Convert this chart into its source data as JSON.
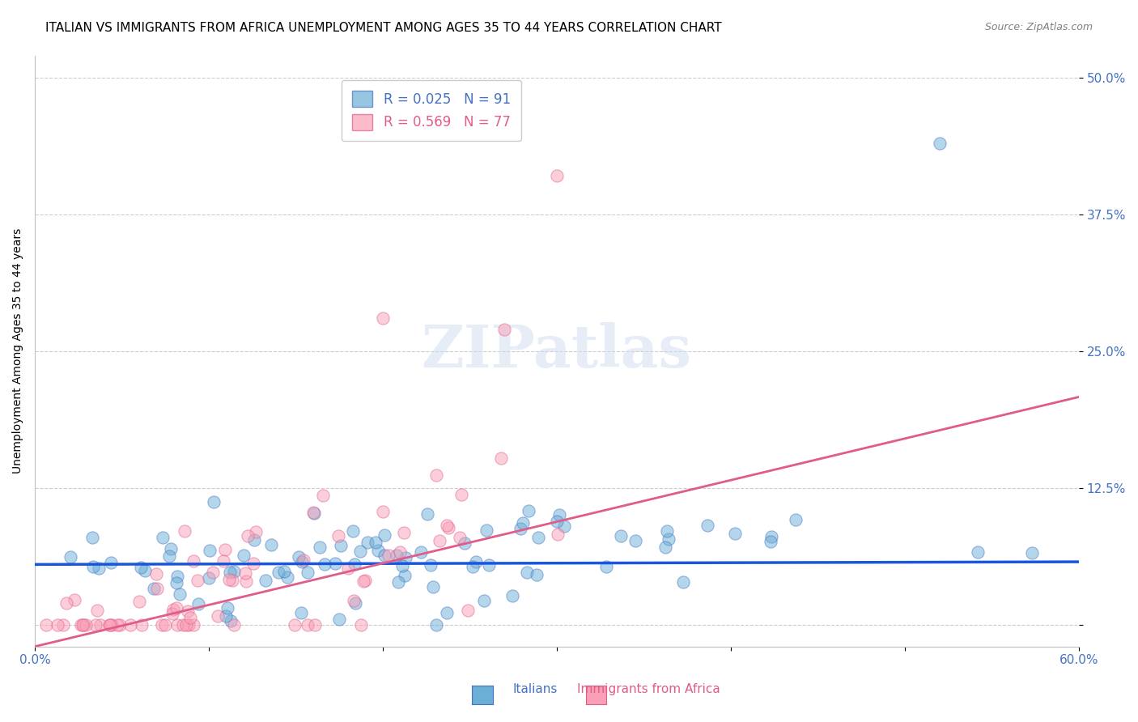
{
  "title": "ITALIAN VS IMMIGRANTS FROM AFRICA UNEMPLOYMENT AMONG AGES 35 TO 44 YEARS CORRELATION CHART",
  "source": "Source: ZipAtlas.com",
  "xlabel": "",
  "ylabel": "Unemployment Among Ages 35 to 44 years",
  "xlim": [
    0.0,
    0.6
  ],
  "ylim": [
    -0.02,
    0.52
  ],
  "yticks": [
    0.0,
    0.125,
    0.25,
    0.375,
    0.5
  ],
  "ytick_labels": [
    "",
    "12.5%",
    "25.0%",
    "37.5%",
    "50.0%"
  ],
  "xtick_labels": [
    "0.0%",
    "",
    "",
    "",
    "",
    "",
    "60.0%"
  ],
  "xticks": [
    0.0,
    0.1,
    0.2,
    0.3,
    0.4,
    0.5,
    0.6
  ],
  "legend_label1": "R = 0.025   N = 91",
  "legend_label2": "R = 0.569   N = 77",
  "color_italian": "#6baed6",
  "color_africa": "#fa9fb5",
  "color_axis": "#4472c4",
  "line_color_italian": "#1a56db",
  "line_color_africa": "#e05c8a",
  "watermark": "ZIPatlas",
  "title_fontsize": 11,
  "axis_label_fontsize": 10,
  "tick_fontsize": 11,
  "italian_R": 0.025,
  "italian_N": 91,
  "africa_R": 0.569,
  "africa_N": 77,
  "italian_intercept": 0.055,
  "italian_slope": 0.004,
  "africa_intercept": -0.02,
  "africa_slope": 0.38
}
